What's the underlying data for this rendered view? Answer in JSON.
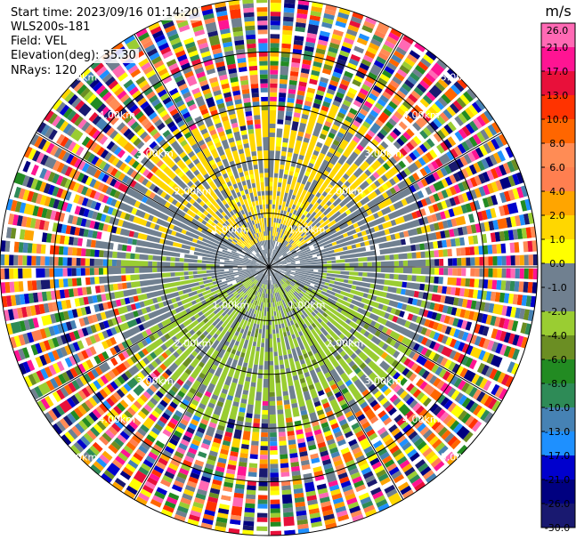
{
  "chart_data": {
    "type": "heatmap",
    "subtype": "radar-ppi",
    "title": "",
    "header": {
      "start_time": "Start time: 2023/09/16 01:14:20",
      "instrument": "WLS200s-181",
      "field": "Field: VEL",
      "elevation": "Elevation(deg): 35.30",
      "nrays": "NRays: 120"
    },
    "range_rings_km": [
      1.0,
      2.0,
      3.0,
      4.0,
      5.0
    ],
    "range_ring_labels": [
      "1.00km",
      "2.00km",
      "3.00km",
      "4.00km",
      "5.00km"
    ],
    "n_rays": 120,
    "max_range_km": 5.0,
    "colorbar": {
      "unit": "m/s",
      "tick_labels": [
        "26.0",
        "21.0",
        "17.0",
        "13.0",
        "10.0",
        "8.0",
        "6.0",
        "4.0",
        "2.0",
        "1.0",
        "0.0",
        "-1.0",
        "-2.0",
        "-4.0",
        "-6.0",
        "-8.0",
        "-10.0",
        "-13.0",
        "-17.0",
        "-21.0",
        "-26.0",
        "-30.0"
      ],
      "bin_colors": [
        "#ff69b4",
        "#ff1493",
        "#e8103a",
        "#ff3300",
        "#ff6600",
        "#ff8c55",
        "#ff7f50",
        "#ffa500",
        "#ffd700",
        "#ffff00",
        "#708090",
        "#708090",
        "#9acd32",
        "#6b8e23",
        "#228b22",
        "#2e8b57",
        "#4682b4",
        "#1e90ff",
        "#0000cd",
        "#000080",
        "#191970"
      ]
    },
    "pattern": {
      "near_field_classes": [
        "yellow sector toward north (about 1 to 2 m/s)",
        "olive-green sector toward south (about -1 to -2 m/s)",
        "gray near zero elsewhere"
      ],
      "far_field": "noisy mix of all velocity colors beyond about 3 km"
    }
  }
}
